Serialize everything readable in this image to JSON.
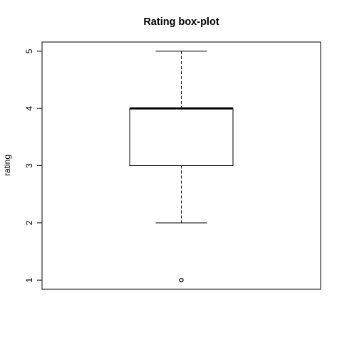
{
  "chart_data": {
    "type": "boxplot",
    "title": "Rating box-plot",
    "ylabel": "rating",
    "xlabel": "",
    "ylim": [
      0.84,
      5.16
    ],
    "yticks": [
      "1",
      "2",
      "3",
      "4",
      "5"
    ],
    "grid": false,
    "series": [
      {
        "min": 2,
        "q1": 3,
        "median": 4,
        "q3": 4,
        "max": 5,
        "outliers": [
          1
        ]
      }
    ]
  }
}
